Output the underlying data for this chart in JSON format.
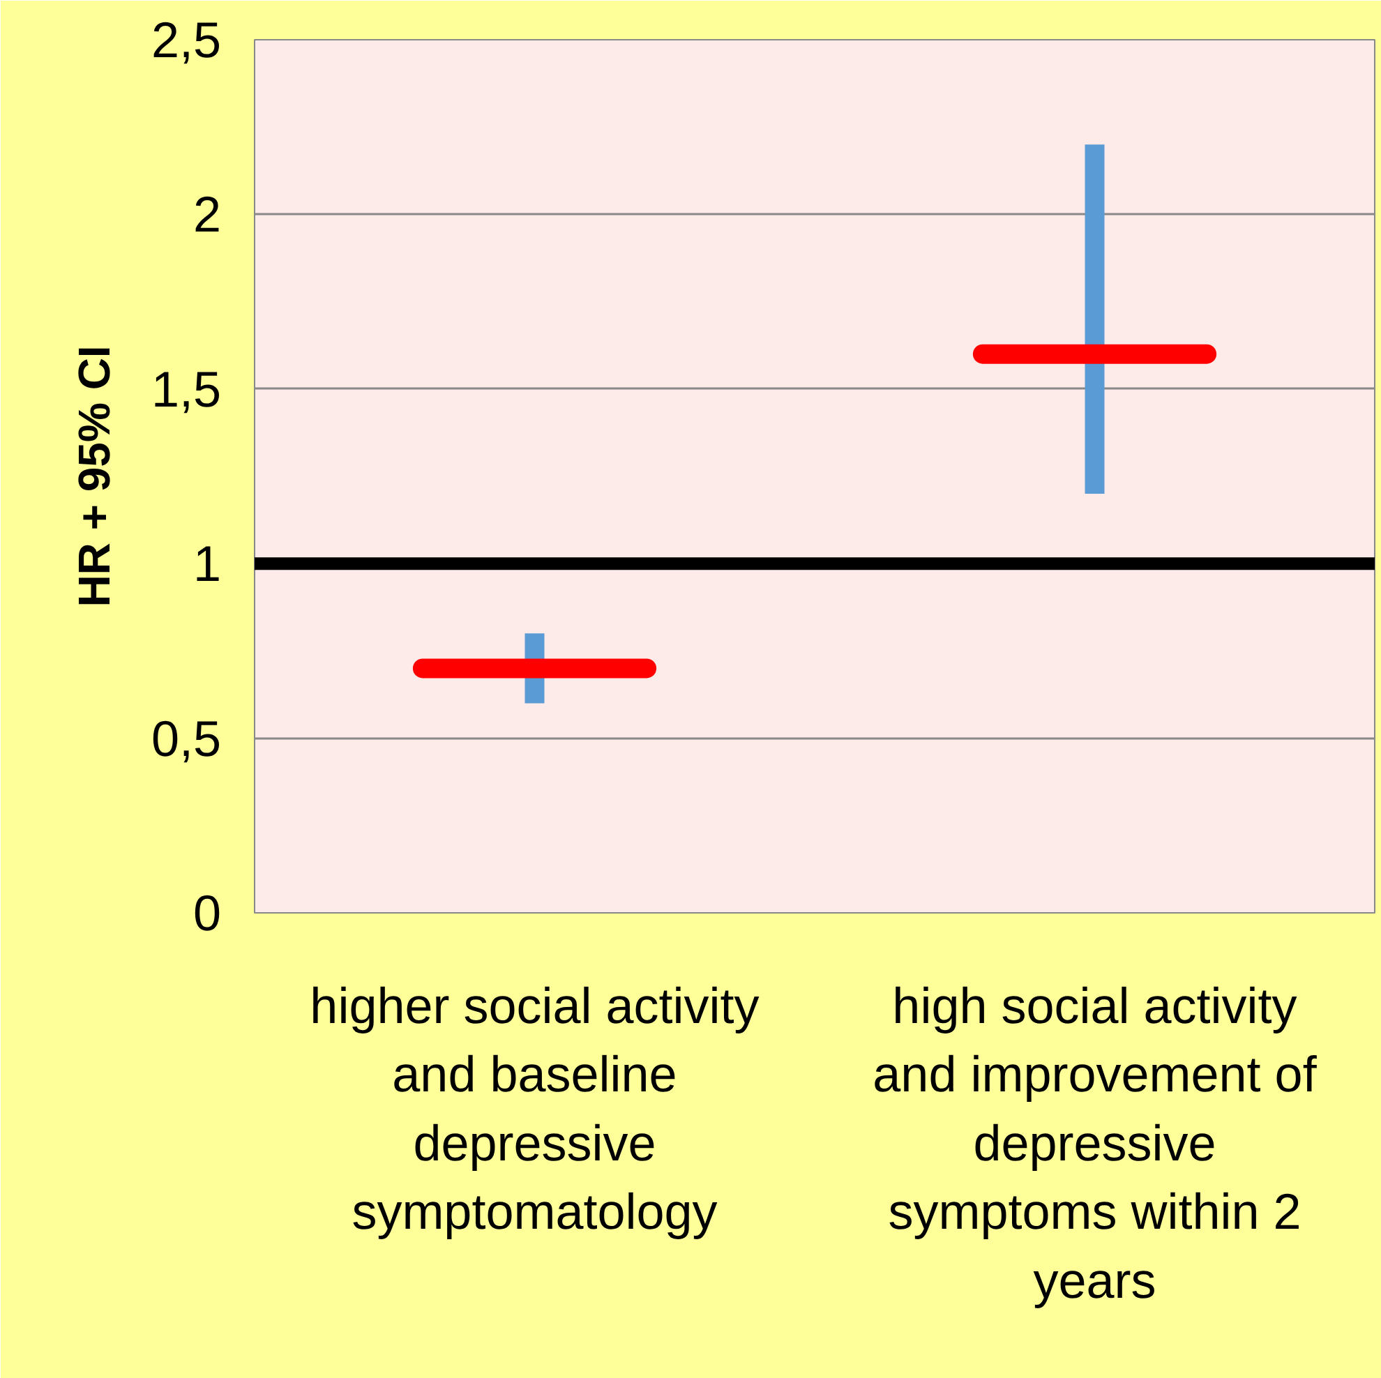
{
  "chart_data": {
    "type": "box",
    "ylabel": "HR + 95% CI",
    "categories": [
      "higher social activity\nand baseline\ndepressive\nsymptomatology",
      "high social activity\nand improvement of\ndepressive\nsymptoms within 2\nyears"
    ],
    "series": [
      {
        "color": "#ff0000",
        "boxes": [
          {
            "low": 0.6,
            "q1": 0.7,
            "median": 0.7,
            "q3": 0.7,
            "high": 0.8
          },
          {
            "low": 1.2,
            "q1": 1.6,
            "median": 1.6,
            "q3": 1.6,
            "high": 2.2
          }
        ]
      }
    ],
    "ylim": [
      0,
      2.5
    ],
    "yticks": [
      0,
      {
        "value": 0.5,
        "label": "0,5"
      },
      1,
      {
        "value": 1.5,
        "label": "1,5"
      },
      2,
      {
        "value": 2.5,
        "label": "2,5"
      }
    ],
    "ref_lines": [
      {
        "axis": "y",
        "value": 1,
        "color": "#000000"
      }
    ],
    "grid": "y"
  }
}
